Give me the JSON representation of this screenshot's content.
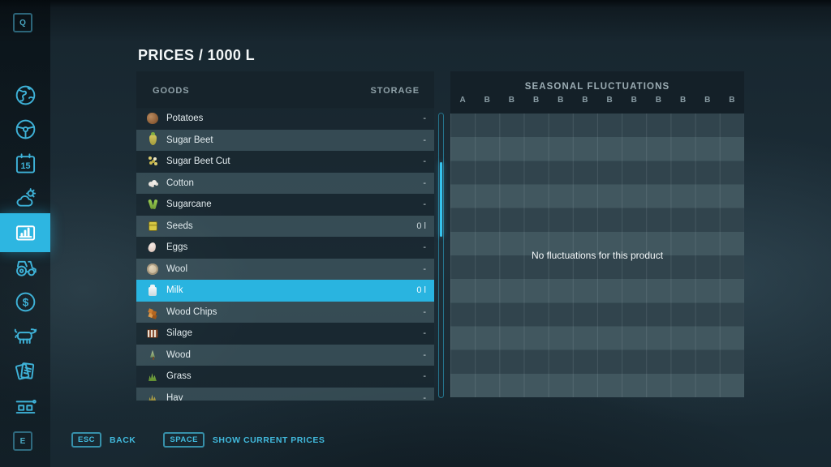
{
  "colors": {
    "accent": "#2fb8e2",
    "selected_row": "#29b4e0"
  },
  "sidebar": {
    "top_key": "Q",
    "bottom_key": "E",
    "calendar_day": "15",
    "items": [
      {
        "icon": "globe-icon",
        "active": false
      },
      {
        "icon": "steering-wheel-icon",
        "active": false
      },
      {
        "icon": "calendar-icon",
        "active": false
      },
      {
        "icon": "weather-icon",
        "active": false
      },
      {
        "icon": "statistics-icon",
        "active": true
      },
      {
        "icon": "tractor-icon",
        "active": false
      },
      {
        "icon": "finances-icon",
        "active": false
      },
      {
        "icon": "animals-icon",
        "active": false
      },
      {
        "icon": "contracts-icon",
        "active": false
      },
      {
        "icon": "production-chains-icon",
        "active": false
      }
    ]
  },
  "header": {
    "title": "PRICES / 1000 L"
  },
  "goods_panel": {
    "columns": {
      "goods": "GOODS",
      "storage": "STORAGE"
    },
    "rows": [
      {
        "name": "Potatoes",
        "storage": "-",
        "icon": "potatoes-icon",
        "selected": false
      },
      {
        "name": "Sugar Beet",
        "storage": "-",
        "icon": "sugar-beet-icon",
        "selected": false
      },
      {
        "name": "Sugar Beet Cut",
        "storage": "-",
        "icon": "sugar-beet-cut-icon",
        "selected": false
      },
      {
        "name": "Cotton",
        "storage": "-",
        "icon": "cotton-icon",
        "selected": false
      },
      {
        "name": "Sugarcane",
        "storage": "-",
        "icon": "sugarcane-icon",
        "selected": false
      },
      {
        "name": "Seeds",
        "storage": "0 l",
        "icon": "seeds-icon",
        "selected": false
      },
      {
        "name": "Eggs",
        "storage": "-",
        "icon": "eggs-icon",
        "selected": false
      },
      {
        "name": "Wool",
        "storage": "-",
        "icon": "wool-icon",
        "selected": false
      },
      {
        "name": "Milk",
        "storage": "0 l",
        "icon": "milk-icon",
        "selected": true
      },
      {
        "name": "Wood Chips",
        "storage": "-",
        "icon": "wood-chips-icon",
        "selected": false
      },
      {
        "name": "Silage",
        "storage": "-",
        "icon": "silage-icon",
        "selected": false
      },
      {
        "name": "Wood",
        "storage": "-",
        "icon": "wood-icon",
        "selected": false
      },
      {
        "name": "Grass",
        "storage": "-",
        "icon": "grass-icon",
        "selected": false
      },
      {
        "name": "Hay",
        "storage": "-",
        "icon": "hay-icon",
        "selected": false
      }
    ]
  },
  "fluctuations_panel": {
    "title": "SEASONAL FLUCTUATIONS",
    "columns": [
      "A",
      "B",
      "B",
      "B",
      "B",
      "B",
      "B",
      "B",
      "B",
      "B",
      "B",
      "B"
    ],
    "empty_message": "No fluctuations for this product"
  },
  "footer": {
    "hints": [
      {
        "key": "ESC",
        "label": "BACK"
      },
      {
        "key": "SPACE",
        "label": "SHOW CURRENT PRICES"
      }
    ]
  }
}
